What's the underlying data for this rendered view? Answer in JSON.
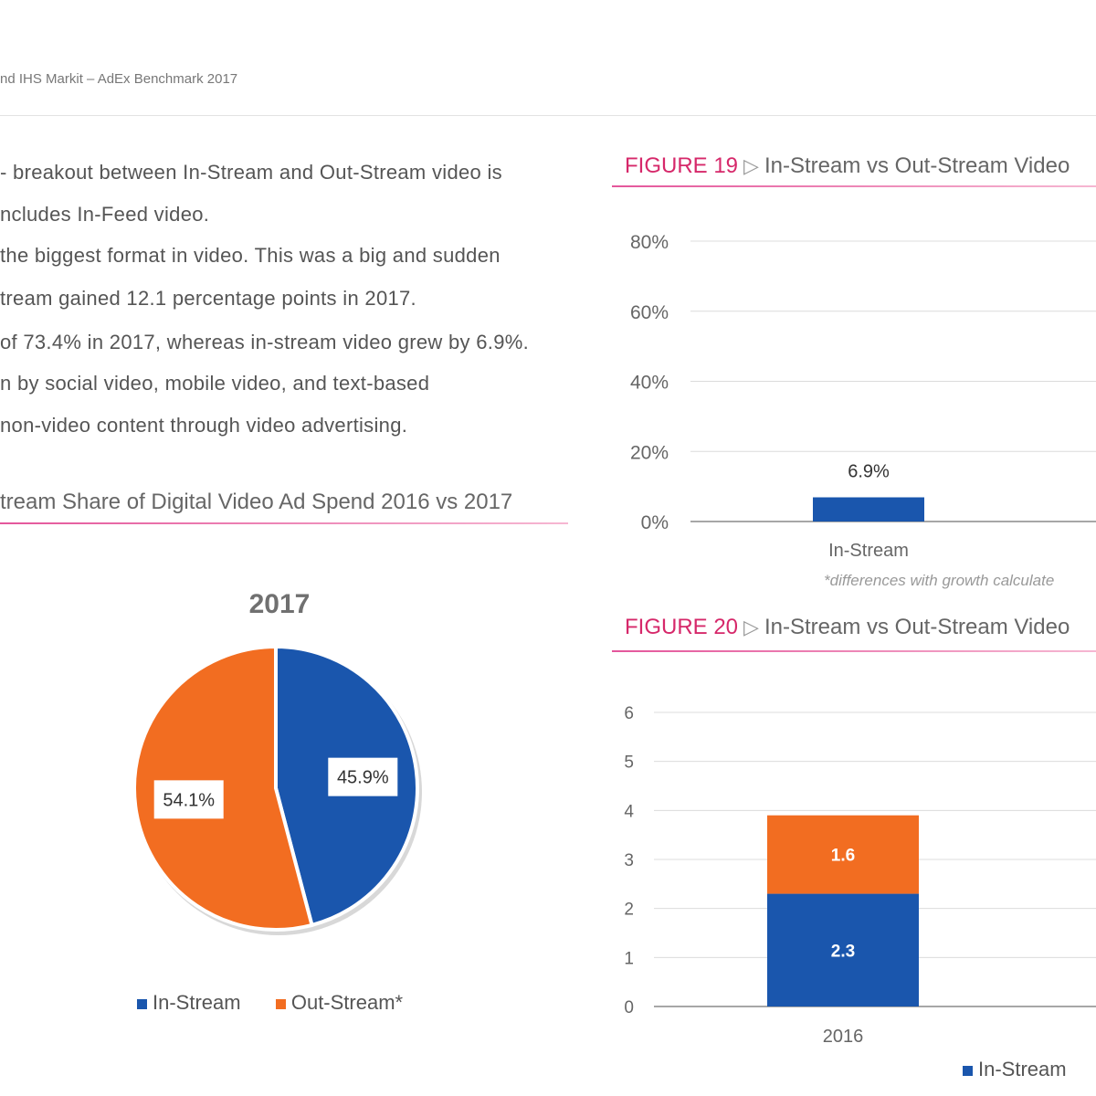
{
  "header": {
    "text": "nd IHS Markit – AdEx Benchmark 2017"
  },
  "paragraph": [
    "- breakout between In-Stream and Out-Stream video is",
    "ncludes In-Feed video.",
    "the biggest format in video. This was a big and sudden",
    "tream gained 12.1 percentage points in 2017.",
    "of 73.4% in 2017, whereas in-stream video grew by 6.9%.",
    "n by social video, mobile video, and text-based",
    "non-video content through video advertising."
  ],
  "pie_caption": "tream Share of Digital Video Ad Spend 2016 vs 2017",
  "figure19": {
    "number": "FIGURE 19",
    "triangle": "▷",
    "title": "In-Stream vs Out-Stream Video"
  },
  "figure20": {
    "number": "FIGURE 20",
    "triangle": "▷",
    "title": "In-Stream vs Out-Stream Video"
  },
  "footnote": "*differences with growth calculate",
  "colors": {
    "in_stream": "#1a56ad",
    "out_stream": "#f26d21",
    "accent": "#d6286a"
  },
  "chart_data": [
    {
      "type": "pie",
      "title": "2017",
      "slices": [
        {
          "name": "In-Stream",
          "value": 45.9,
          "label": "45.9%"
        },
        {
          "name": "Out-Stream*",
          "value": 54.1,
          "label": "54.1%"
        }
      ],
      "legend": [
        "In-Stream",
        "Out-Stream*"
      ],
      "legend_position": "bottom"
    },
    {
      "type": "bar",
      "categories": [
        "In-Stream"
      ],
      "values": [
        6.9
      ],
      "labels": [
        "6.9%"
      ],
      "yticks": [
        "0%",
        "20%",
        "40%",
        "60%",
        "80%"
      ],
      "ylim": [
        0,
        80
      ],
      "grid": true
    },
    {
      "type": "bar",
      "stacked": true,
      "categories": [
        "2016"
      ],
      "series": [
        {
          "name": "In-Stream",
          "values": [
            2.3
          ]
        },
        {
          "name": "",
          "values": [
            1.6
          ]
        }
      ],
      "yticks": [
        "0",
        "1",
        "2",
        "3",
        "4",
        "5",
        "6"
      ],
      "ylim": [
        0,
        6
      ],
      "grid": true,
      "legend": [
        "In-Stream"
      ],
      "legend_position": "bottom"
    }
  ]
}
